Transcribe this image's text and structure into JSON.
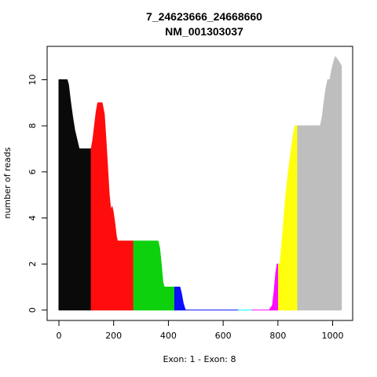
{
  "chart_data": {
    "type": "area",
    "title": "7_24623666_24668660",
    "subtitle": "NM_001303037",
    "xlabel": "Exon: 1 - Exon: 8",
    "ylabel": "number of reads",
    "xlim": [
      -43,
      1073
    ],
    "ylim": [
      -0.45,
      11.45
    ],
    "xticks": [
      0,
      200,
      400,
      600,
      800,
      1000
    ],
    "xtick_labels": [
      "0",
      "200",
      "400",
      "600",
      "800",
      "1000"
    ],
    "yticks": [
      0,
      2,
      4,
      6,
      8,
      10
    ],
    "ytick_labels": [
      "0",
      "2",
      "4",
      "6",
      "8",
      "10"
    ],
    "grid": false,
    "series": [
      {
        "color": "#0a0a0a",
        "points": [
          [
            0,
            10
          ],
          [
            30,
            10
          ],
          [
            35,
            9.8
          ],
          [
            42,
            9.1
          ],
          [
            50,
            8.4
          ],
          [
            58,
            7.8
          ],
          [
            66,
            7.4
          ],
          [
            74,
            7.0
          ],
          [
            118,
            7.0
          ]
        ]
      },
      {
        "color": "#ff0d0d",
        "points": [
          [
            118,
            7.0
          ],
          [
            124,
            7.4
          ],
          [
            130,
            8.0
          ],
          [
            136,
            8.6
          ],
          [
            142,
            9.0
          ],
          [
            158,
            9.0
          ],
          [
            166,
            8.5
          ],
          [
            172,
            7.4
          ],
          [
            178,
            6.2
          ],
          [
            184,
            5.0
          ],
          [
            190,
            4.3
          ],
          [
            194,
            4.5
          ],
          [
            198,
            4.3
          ],
          [
            204,
            3.8
          ],
          [
            210,
            3.2
          ],
          [
            214,
            3.0
          ],
          [
            273,
            3.0
          ]
        ]
      },
      {
        "color": "#0dd10d",
        "points": [
          [
            273,
            3.0
          ],
          [
            362,
            3.0
          ],
          [
            368,
            2.7
          ],
          [
            374,
            2.0
          ],
          [
            380,
            1.2
          ],
          [
            385,
            1.0
          ],
          [
            423,
            1.0
          ]
        ]
      },
      {
        "color": "#0d0dff",
        "points": [
          [
            423,
            1.0
          ],
          [
            442,
            1.0
          ],
          [
            448,
            0.7
          ],
          [
            454,
            0.3
          ],
          [
            462,
            0.0
          ]
        ]
      },
      {
        "color": "#0d0dff",
        "points": [
          [
            462,
            0.0
          ],
          [
            655,
            0.0
          ]
        ]
      },
      {
        "color": "#00ffff",
        "points": [
          [
            655,
            0.0
          ],
          [
            705,
            0.0
          ]
        ]
      },
      {
        "color": "#ff0dff",
        "points": [
          [
            705,
            0.0
          ],
          [
            768,
            0.0
          ],
          [
            780,
            0.2
          ],
          [
            786,
            0.8
          ],
          [
            792,
            1.6
          ],
          [
            797,
            2.0
          ],
          [
            802,
            2.0
          ]
        ]
      },
      {
        "color": "#ffff0d",
        "points": [
          [
            802,
            2.0
          ],
          [
            808,
            2.0
          ],
          [
            818,
            3.4
          ],
          [
            828,
            4.9
          ],
          [
            838,
            6.0
          ],
          [
            848,
            6.9
          ],
          [
            856,
            7.6
          ],
          [
            862,
            8.0
          ],
          [
            872,
            8.0
          ]
        ]
      },
      {
        "color": "#bebebe",
        "points": [
          [
            872,
            8.0
          ],
          [
            955,
            8.0
          ],
          [
            962,
            8.4
          ],
          [
            968,
            9.0
          ],
          [
            975,
            9.6
          ],
          [
            982,
            10.0
          ],
          [
            990,
            10.0
          ],
          [
            996,
            10.4
          ],
          [
            1004,
            10.8
          ],
          [
            1010,
            11.0
          ],
          [
            1016,
            10.9
          ],
          [
            1022,
            10.8
          ],
          [
            1032,
            10.6
          ]
        ]
      }
    ]
  }
}
